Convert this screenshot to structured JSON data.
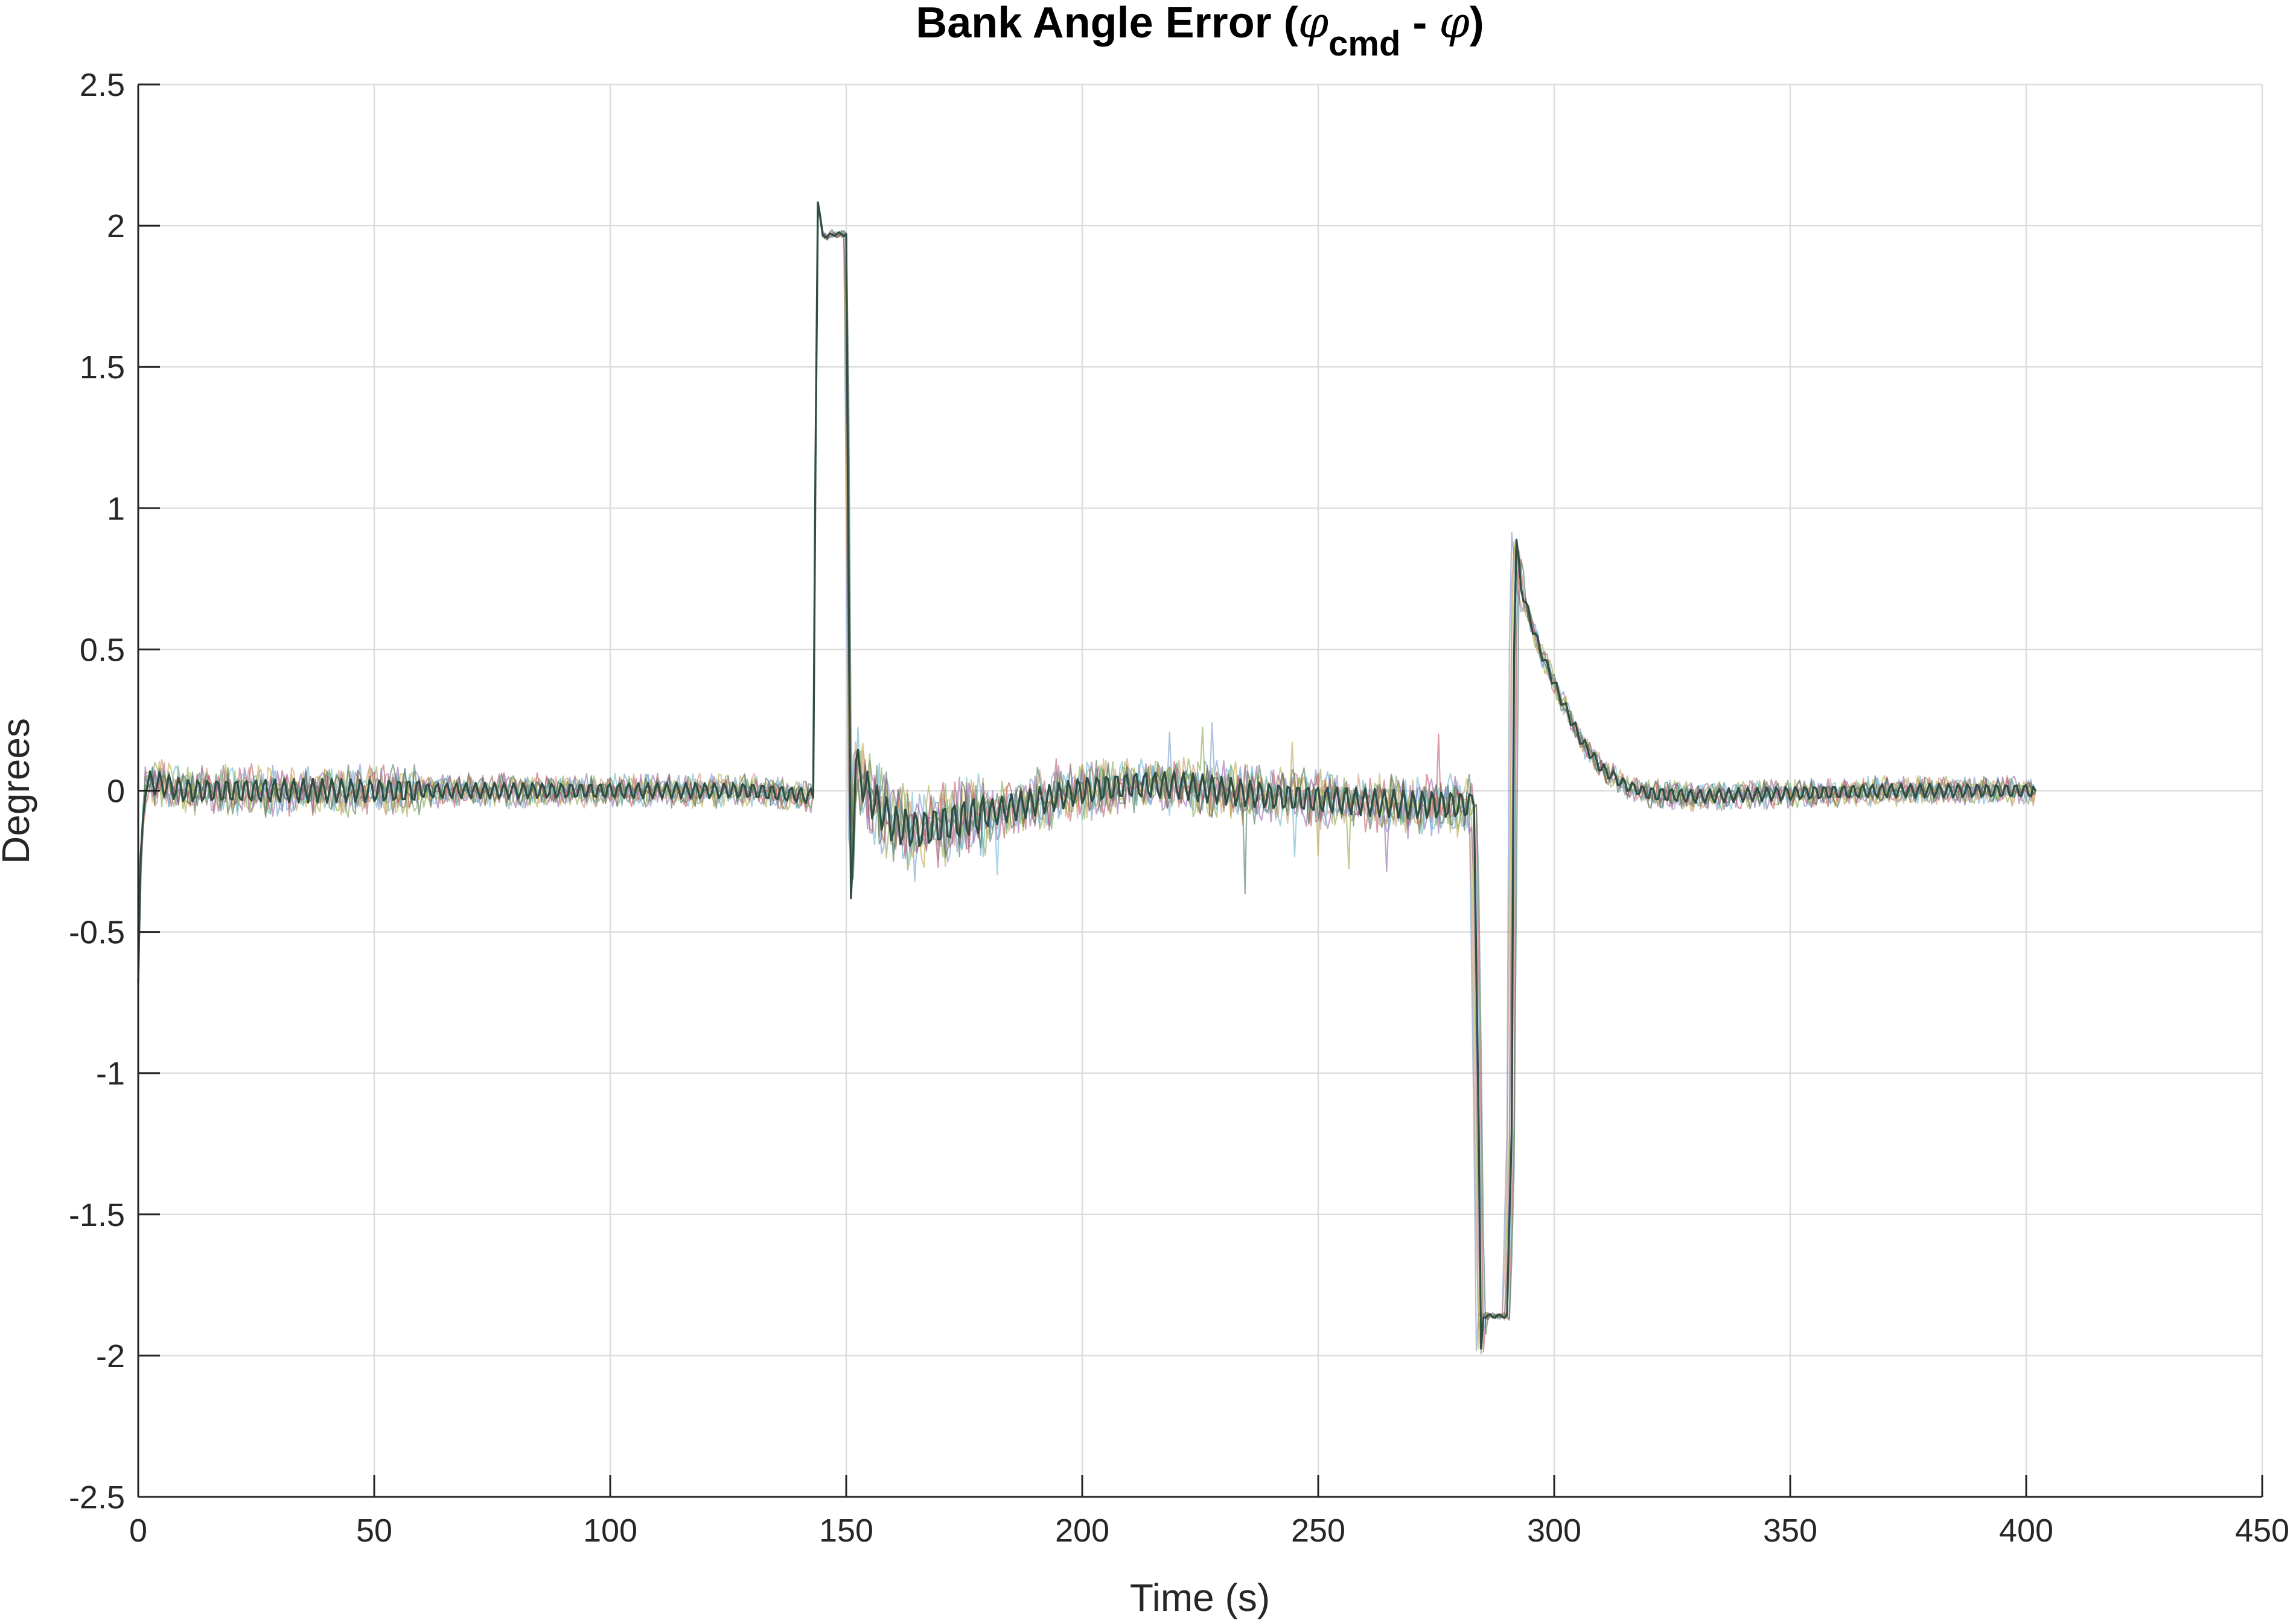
{
  "chart_data": {
    "type": "line",
    "title": {
      "main": "Bank Angle Error (",
      "phi": "φ",
      "sub": "cmd",
      "dash": " - ",
      "phi2": "φ",
      "close": ")"
    },
    "xlabel": "Time (s)",
    "ylabel": "Degrees",
    "xlim": [
      0,
      450
    ],
    "ylim": [
      -2.5,
      2.5
    ],
    "xticks": [
      0,
      50,
      100,
      150,
      200,
      250,
      300,
      350,
      400,
      450
    ],
    "yticks": [
      -2.5,
      -2,
      -1.5,
      -1,
      -0.5,
      0,
      0.5,
      1,
      1.5,
      2,
      2.5
    ],
    "xtick_labels": [
      "0",
      "50",
      "100",
      "150",
      "200",
      "250",
      "300",
      "350",
      "400",
      "450"
    ],
    "ytick_labels": [
      "-2.5",
      "-2",
      "-1.5",
      "-1",
      "-0.5",
      "0",
      "0.5",
      "1",
      "1.5",
      "2",
      "2.5"
    ],
    "grid": true,
    "legend": "none",
    "series_colors": [
      "#6a8fc7",
      "#c98a6a",
      "#b5a23a",
      "#8a5aa0",
      "#7aa33a",
      "#5fb0c8",
      "#b84a5a",
      "#3a6a4a"
    ],
    "series": [
      {
        "x": [
          0,
          0.6,
          1.5,
          3,
          10,
          30,
          60,
          100,
          130,
          143,
          143.5,
          144,
          145,
          146,
          147,
          150,
          150.6,
          151,
          152,
          153,
          155,
          160,
          165,
          170,
          180,
          190,
          200,
          210,
          220,
          230,
          240,
          250,
          260,
          270,
          283,
          284,
          284.5,
          285,
          286,
          287,
          290,
          291,
          291.5,
          292,
          293,
          295,
          297,
          300,
          303,
          306,
          310,
          315,
          320,
          330,
          350,
          370,
          390,
          402
        ],
        "y": [
          -0.68,
          -0.2,
          0.02,
          0.03,
          0.0,
          0.0,
          0.0,
          0.0,
          0.0,
          -0.02,
          1.2,
          2.08,
          1.97,
          1.96,
          1.97,
          1.97,
          0.5,
          -0.38,
          0.1,
          0.05,
          -0.02,
          -0.12,
          -0.14,
          -0.12,
          -0.08,
          -0.04,
          0.0,
          0.02,
          0.02,
          0.0,
          -0.02,
          -0.03,
          -0.04,
          -0.05,
          -0.05,
          -1.2,
          -1.98,
          -1.86,
          -1.86,
          -1.86,
          -1.86,
          -1.2,
          0.5,
          0.88,
          0.72,
          0.6,
          0.5,
          0.38,
          0.27,
          0.17,
          0.08,
          0.02,
          -0.01,
          -0.02,
          -0.01,
          0.0,
          0.0,
          0.0
        ]
      }
    ]
  }
}
